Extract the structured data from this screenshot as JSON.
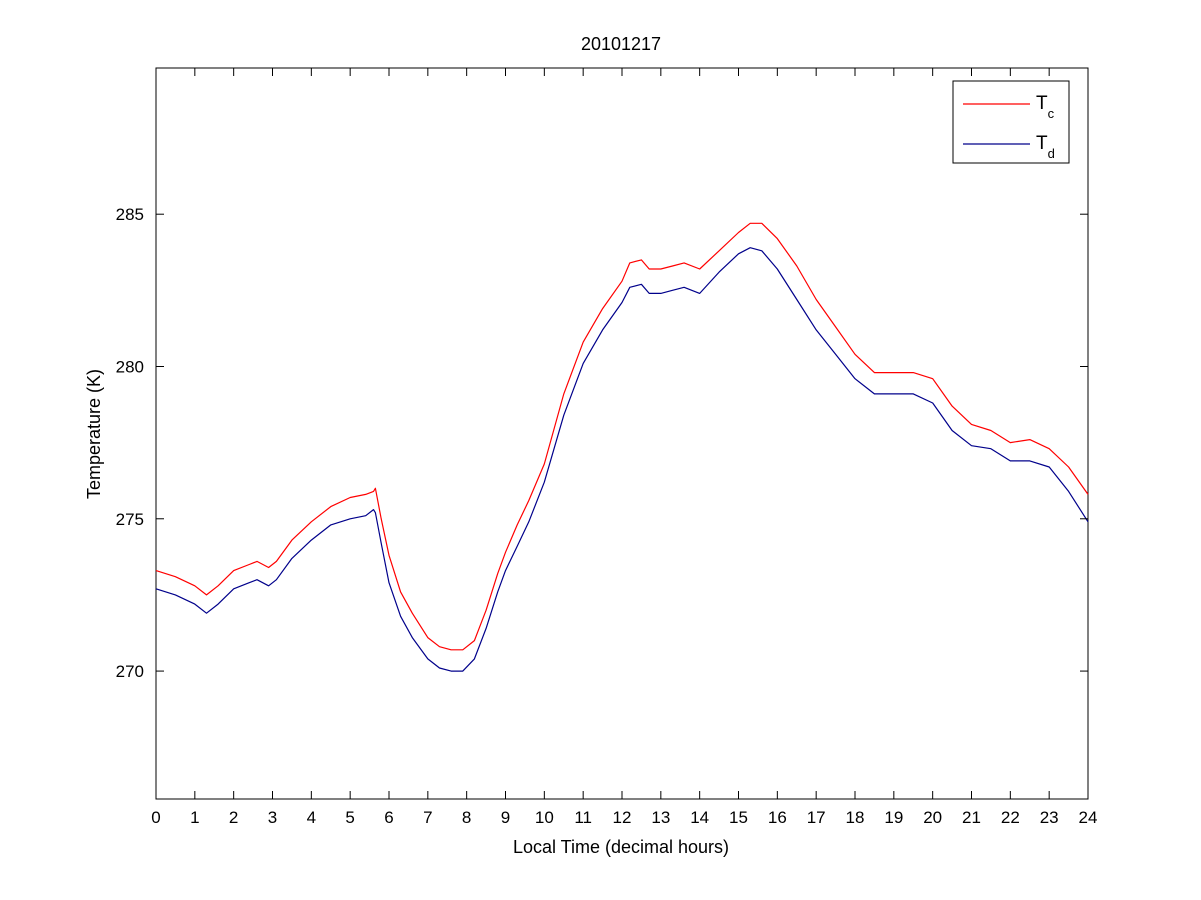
{
  "chart_data": {
    "type": "line",
    "title": "20101217",
    "xlabel": "Local Time (decimal hours)",
    "ylabel": "Temperature (K)",
    "xlim": [
      0,
      24
    ],
    "ylim": [
      265.8,
      289.8
    ],
    "xticks": [
      0,
      1,
      2,
      3,
      4,
      5,
      6,
      7,
      8,
      9,
      10,
      11,
      12,
      13,
      14,
      15,
      16,
      17,
      18,
      19,
      20,
      21,
      22,
      23,
      24
    ],
    "yticks": [
      270,
      275,
      280,
      285
    ],
    "grid": false,
    "legend_position": "top-right",
    "series": [
      {
        "name": "T",
        "name_sub": "c",
        "color": "#ff0000",
        "x": [
          0,
          0.5,
          1.0,
          1.3,
          1.6,
          2.0,
          2.4,
          2.6,
          2.9,
          3.1,
          3.5,
          4.0,
          4.5,
          5.0,
          5.4,
          5.6,
          5.65,
          5.8,
          6.0,
          6.3,
          6.6,
          7.0,
          7.3,
          7.6,
          7.9,
          8.2,
          8.5,
          8.8,
          9.0,
          9.3,
          9.6,
          10.0,
          10.5,
          11.0,
          11.5,
          12.0,
          12.2,
          12.5,
          12.7,
          13.0,
          13.3,
          13.6,
          14.0,
          14.5,
          15.0,
          15.3,
          15.6,
          16.0,
          16.5,
          17.0,
          17.5,
          18.0,
          18.5,
          19.0,
          19.5,
          20.0,
          20.5,
          21.0,
          21.5,
          22.0,
          22.5,
          23.0,
          23.5,
          24.0
        ],
        "values": [
          273.3,
          273.1,
          272.8,
          272.5,
          272.8,
          273.3,
          273.5,
          273.6,
          273.4,
          273.6,
          274.3,
          274.9,
          275.4,
          275.7,
          275.8,
          275.9,
          276.0,
          275.0,
          273.8,
          272.6,
          271.9,
          271.1,
          270.8,
          270.7,
          270.7,
          271.0,
          272.0,
          273.2,
          273.9,
          274.8,
          275.6,
          276.8,
          279.1,
          280.8,
          281.9,
          282.8,
          283.4,
          283.5,
          283.2,
          283.2,
          283.3,
          283.4,
          283.2,
          283.8,
          284.4,
          284.7,
          284.7,
          284.2,
          283.3,
          282.2,
          281.3,
          280.4,
          279.8,
          279.8,
          279.8,
          279.6,
          278.7,
          278.1,
          277.9,
          277.5,
          277.6,
          277.3,
          276.7,
          275.8
        ]
      },
      {
        "name": "T",
        "name_sub": "d",
        "color": "#00008b",
        "x": [
          0,
          0.5,
          1.0,
          1.3,
          1.6,
          2.0,
          2.4,
          2.6,
          2.9,
          3.1,
          3.5,
          4.0,
          4.5,
          5.0,
          5.4,
          5.6,
          5.65,
          5.8,
          6.0,
          6.3,
          6.6,
          7.0,
          7.3,
          7.6,
          7.9,
          8.2,
          8.5,
          8.8,
          9.0,
          9.3,
          9.6,
          10.0,
          10.5,
          11.0,
          11.5,
          12.0,
          12.2,
          12.5,
          12.7,
          13.0,
          13.3,
          13.6,
          14.0,
          14.5,
          15.0,
          15.3,
          15.6,
          16.0,
          16.5,
          17.0,
          17.5,
          18.0,
          18.5,
          19.0,
          19.5,
          20.0,
          20.5,
          21.0,
          21.5,
          22.0,
          22.5,
          23.0,
          23.5,
          24.0
        ],
        "values": [
          272.7,
          272.5,
          272.2,
          271.9,
          272.2,
          272.7,
          272.9,
          273.0,
          272.8,
          273.0,
          273.7,
          274.3,
          274.8,
          275.0,
          275.1,
          275.3,
          275.2,
          274.2,
          272.9,
          271.8,
          271.1,
          270.4,
          270.1,
          270.0,
          270.0,
          270.4,
          271.4,
          272.6,
          273.3,
          274.1,
          274.9,
          276.2,
          278.4,
          280.1,
          281.2,
          282.1,
          282.6,
          282.7,
          282.4,
          282.4,
          282.5,
          282.6,
          282.4,
          283.1,
          283.7,
          283.9,
          283.8,
          283.2,
          282.2,
          281.2,
          280.4,
          279.6,
          279.1,
          279.1,
          279.1,
          278.8,
          277.9,
          277.4,
          277.3,
          276.9,
          276.9,
          276.7,
          275.9,
          274.9
        ]
      }
    ]
  }
}
